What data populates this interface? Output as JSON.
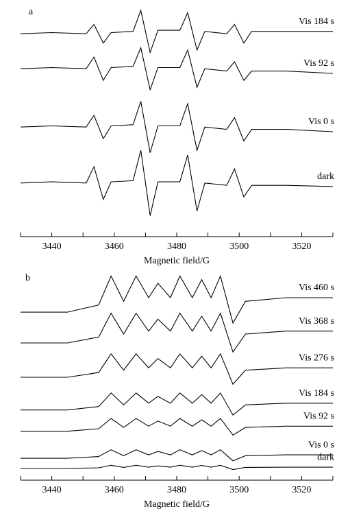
{
  "chart_data": [
    {
      "type": "line",
      "panel": "a",
      "xlabel": "Magnetic field/G",
      "color": "#000000",
      "xlim": [
        3430,
        3530
      ],
      "ylim": [
        0,
        100
      ],
      "xticks": [
        3440,
        3460,
        3480,
        3500,
        3520
      ],
      "xminorticks": [
        3430,
        3450,
        3470,
        3490,
        3510,
        3530
      ],
      "x": [
        3430,
        3440,
        3451,
        3453.5,
        3456.5,
        3459,
        3466,
        3468.5,
        3471.5,
        3474,
        3481,
        3483.5,
        3486.5,
        3489,
        3496,
        3498.5,
        3501.5,
        3504,
        3515,
        3530
      ],
      "series": [
        {
          "name": "Vis 184 s",
          "values": [
            87,
            87.5,
            87,
            91,
            83,
            87.5,
            88,
            97,
            79,
            88.5,
            88.5,
            96,
            80,
            88,
            87,
            91,
            83,
            88,
            88,
            88
          ]
        },
        {
          "name": "Vis 92 s",
          "values": [
            72,
            72.5,
            72,
            77,
            67,
            72.5,
            73,
            81,
            63,
            72.5,
            72.5,
            80,
            64,
            72,
            71,
            75,
            67,
            71,
            71,
            70
          ]
        },
        {
          "name": "Vis 0 s",
          "values": [
            47,
            47.5,
            47,
            52,
            42,
            47.5,
            48,
            58,
            36,
            47.5,
            47.5,
            57,
            37,
            47,
            46,
            51,
            41,
            46,
            46,
            45
          ]
        },
        {
          "name": "dark",
          "values": [
            23,
            23.5,
            23,
            30,
            16,
            23.5,
            24,
            37,
            9,
            23.5,
            23.5,
            35,
            11,
            23,
            22,
            29,
            17,
            22,
            22,
            21.5
          ]
        }
      ]
    },
    {
      "type": "line",
      "panel": "b",
      "xlabel": "Magnetic field/G",
      "color": "#000000",
      "xlim": [
        3430,
        3530
      ],
      "ylim": [
        0,
        100
      ],
      "xticks": [
        3440,
        3460,
        3480,
        3500,
        3520
      ],
      "xminorticks": [
        3430,
        3450,
        3470,
        3490,
        3510,
        3530
      ],
      "x": [
        3430,
        3445,
        3455,
        3459,
        3463,
        3467,
        3471,
        3474,
        3478,
        3481,
        3485,
        3488,
        3491,
        3494,
        3498,
        3502,
        3515,
        3530
      ],
      "series": [
        {
          "name": "Vis 460 s",
          "values": [
            79,
            79,
            82.4,
            96,
            84.1,
            96,
            85.8,
            92.6,
            85.8,
            96,
            85.8,
            94.3,
            85.8,
            96,
            73.9,
            84.1,
            85.8,
            85.8
          ]
        },
        {
          "name": "Vis 368 s",
          "values": [
            64.5,
            64.5,
            67.3,
            78.5,
            68.7,
            78.5,
            70.1,
            75.7,
            70.1,
            78.5,
            70.1,
            77.1,
            70.1,
            78.5,
            60.3,
            68.7,
            70.1,
            70.1
          ]
        },
        {
          "name": "Vis 276 s",
          "values": [
            48.4,
            48.4,
            50.6,
            59.4,
            51.7,
            59.4,
            52.8,
            57.2,
            52.8,
            59.4,
            52.8,
            58.3,
            52.8,
            59.4,
            45.1,
            51.7,
            52.8,
            52.8
          ]
        },
        {
          "name": "Vis 184 s",
          "values": [
            33,
            33,
            34.6,
            41,
            35.4,
            41,
            36.2,
            39.4,
            36.2,
            41,
            36.2,
            40.2,
            36.2,
            41,
            30.6,
            35.4,
            36.2,
            36.2
          ]
        },
        {
          "name": "Vis 92 s",
          "values": [
            23,
            23,
            24.2,
            29,
            24.8,
            29,
            25.4,
            27.8,
            25.4,
            29,
            25.4,
            28.4,
            25.4,
            29,
            21.2,
            24.8,
            25.4,
            25.4
          ]
        },
        {
          "name": "Vis 0 s",
          "values": [
            10.3,
            10.3,
            11.1,
            14.3,
            11.5,
            14.3,
            11.9,
            13.5,
            11.9,
            14.3,
            11.9,
            13.9,
            11.9,
            14.3,
            9.1,
            11.5,
            11.9,
            11.9
          ]
        },
        {
          "name": "dark",
          "values": [
            5.5,
            5.5,
            5.8,
            7,
            6,
            7,
            6.1,
            6.7,
            6.1,
            7,
            6.1,
            6.9,
            6.1,
            7,
            5,
            6,
            6.1,
            6.1
          ]
        }
      ]
    }
  ]
}
